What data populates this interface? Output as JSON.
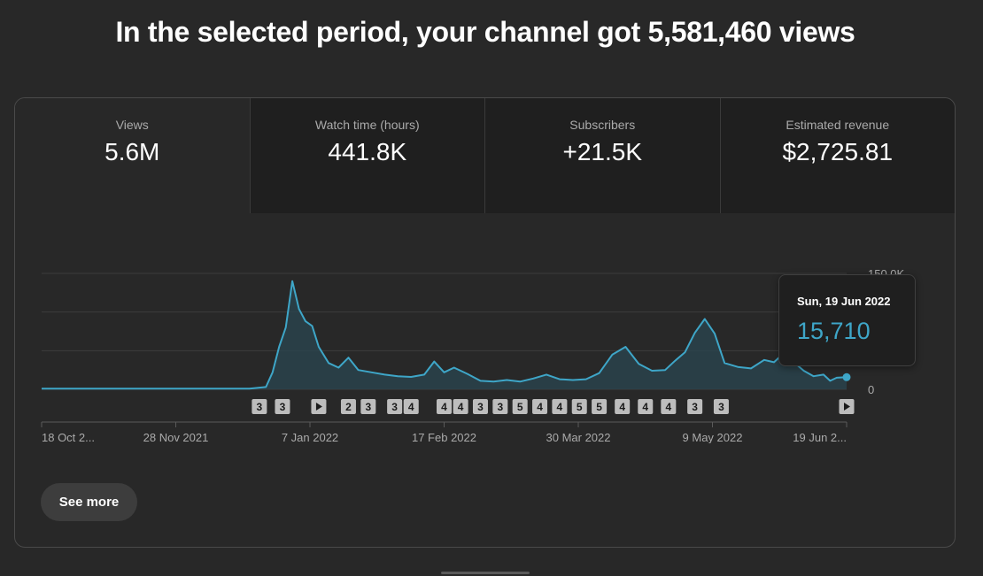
{
  "headline": "In the selected period, your channel got 5,581,460 views",
  "tabs": [
    {
      "label": "Views",
      "value": "5.6M",
      "active": true
    },
    {
      "label": "Watch time (hours)",
      "value": "441.8K",
      "active": false
    },
    {
      "label": "Subscribers",
      "value": "+21.5K",
      "active": false
    },
    {
      "label": "Estimated revenue",
      "value": "$2,725.81",
      "active": false
    }
  ],
  "tooltip": {
    "date": "Sun, 19 Jun 2022",
    "value": "15,710"
  },
  "see_more_label": "See more",
  "colors": {
    "line": "#3ea6c8",
    "fill": "#2a4550",
    "marker_bg": "#bdbdbd",
    "grid": "#3d3d3d"
  },
  "chart_data": {
    "type": "area",
    "y_tick_labels": [
      "150.0K",
      "0"
    ],
    "ylim": [
      0,
      150000
    ],
    "x_tick_labels": [
      "18 Oct 2...",
      "28 Nov 2021",
      "7 Jan 2022",
      "17 Feb 2022",
      "30 Mar 2022",
      "9 May 2022",
      "19 Jun 2..."
    ],
    "x_range": [
      "2021-10-18",
      "2022-06-19"
    ],
    "highlight": {
      "date": "2022-06-19",
      "value": 15710
    },
    "series": [
      {
        "points": [
          [
            "2021-10-18",
            800
          ],
          [
            "2021-11-28",
            800
          ],
          [
            "2021-12-20",
            800
          ],
          [
            "2021-12-25",
            3000
          ],
          [
            "2021-12-27",
            22000
          ],
          [
            "2021-12-29",
            55000
          ],
          [
            "2021-12-31",
            80000
          ],
          [
            "2022-01-02",
            140000
          ],
          [
            "2022-01-04",
            104000
          ],
          [
            "2022-01-06",
            88000
          ],
          [
            "2022-01-08",
            82000
          ],
          [
            "2022-01-10",
            55000
          ],
          [
            "2022-01-13",
            34000
          ],
          [
            "2022-01-16",
            28000
          ],
          [
            "2022-01-19",
            41000
          ],
          [
            "2022-01-22",
            25000
          ],
          [
            "2022-01-26",
            22000
          ],
          [
            "2022-01-30",
            19000
          ],
          [
            "2022-02-03",
            17000
          ],
          [
            "2022-02-07",
            16000
          ],
          [
            "2022-02-11",
            19000
          ],
          [
            "2022-02-14",
            36000
          ],
          [
            "2022-02-17",
            22000
          ],
          [
            "2022-02-20",
            28000
          ],
          [
            "2022-02-24",
            20000
          ],
          [
            "2022-02-28",
            11000
          ],
          [
            "2022-03-04",
            10000
          ],
          [
            "2022-03-08",
            12000
          ],
          [
            "2022-03-12",
            10000
          ],
          [
            "2022-03-16",
            14000
          ],
          [
            "2022-03-20",
            19000
          ],
          [
            "2022-03-24",
            13000
          ],
          [
            "2022-03-28",
            12000
          ],
          [
            "2022-04-01",
            13000
          ],
          [
            "2022-04-05",
            21000
          ],
          [
            "2022-04-09",
            45000
          ],
          [
            "2022-04-13",
            55000
          ],
          [
            "2022-04-17",
            33000
          ],
          [
            "2022-04-21",
            24000
          ],
          [
            "2022-04-25",
            25000
          ],
          [
            "2022-04-28",
            37000
          ],
          [
            "2022-05-01",
            48000
          ],
          [
            "2022-05-04",
            73000
          ],
          [
            "2022-05-07",
            91000
          ],
          [
            "2022-05-10",
            72000
          ],
          [
            "2022-05-13",
            34000
          ],
          [
            "2022-05-17",
            29000
          ],
          [
            "2022-05-21",
            27000
          ],
          [
            "2022-05-25",
            38000
          ],
          [
            "2022-05-28",
            35000
          ],
          [
            "2022-05-31",
            47000
          ],
          [
            "2022-06-03",
            35000
          ],
          [
            "2022-06-06",
            24000
          ],
          [
            "2022-06-09",
            17000
          ],
          [
            "2022-06-12",
            19000
          ],
          [
            "2022-06-14",
            11000
          ],
          [
            "2022-06-16",
            15000
          ],
          [
            "2022-06-19",
            15710
          ]
        ]
      }
    ],
    "markers": [
      {
        "date": "2021-12-23",
        "label": "3"
      },
      {
        "date": "2021-12-30",
        "label": "3"
      },
      {
        "date": "2022-01-10",
        "label": "play"
      },
      {
        "date": "2022-01-19",
        "label": "2"
      },
      {
        "date": "2022-01-25",
        "label": "3"
      },
      {
        "date": "2022-02-02",
        "label": "3"
      },
      {
        "date": "2022-02-07",
        "label": "4"
      },
      {
        "date": "2022-02-17",
        "label": "4"
      },
      {
        "date": "2022-02-22",
        "label": "4"
      },
      {
        "date": "2022-02-28",
        "label": "3"
      },
      {
        "date": "2022-03-06",
        "label": "3"
      },
      {
        "date": "2022-03-12",
        "label": "5"
      },
      {
        "date": "2022-03-18",
        "label": "4"
      },
      {
        "date": "2022-03-24",
        "label": "4"
      },
      {
        "date": "2022-03-30",
        "label": "5"
      },
      {
        "date": "2022-04-05",
        "label": "5"
      },
      {
        "date": "2022-04-12",
        "label": "4"
      },
      {
        "date": "2022-04-19",
        "label": "4"
      },
      {
        "date": "2022-04-26",
        "label": "4"
      },
      {
        "date": "2022-05-04",
        "label": "3"
      },
      {
        "date": "2022-05-12",
        "label": "3"
      },
      {
        "date": "2022-06-19",
        "label": "play"
      }
    ]
  }
}
